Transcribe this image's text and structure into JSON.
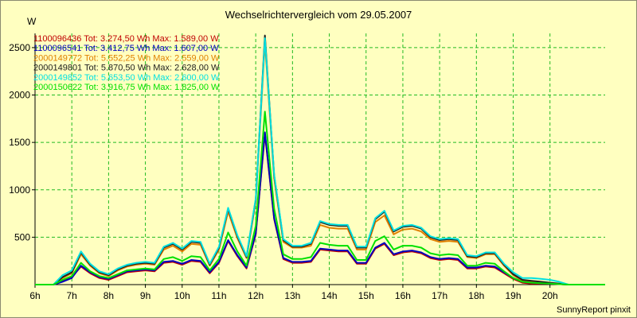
{
  "chart_data": {
    "type": "line",
    "title": "Wechselrichtervergleich vom 29.05.2007",
    "ylabel": "W",
    "xlabel": "",
    "credit": "SunnyReport pinxit",
    "grid": true,
    "legend_position": "top-left",
    "xlim": [
      6,
      21.5
    ],
    "ylim": [
      0,
      2650
    ],
    "x_ticks": [
      6,
      7,
      8,
      9,
      10,
      11,
      12,
      13,
      14,
      15,
      16,
      17,
      18,
      19,
      20
    ],
    "x_tick_labels": [
      "6h",
      "7h",
      "8h",
      "9h",
      "10h",
      "11h",
      "12h",
      "13h",
      "14h",
      "15h",
      "16h",
      "17h",
      "18h",
      "19h",
      "20h"
    ],
    "y_ticks": [
      500,
      1000,
      1500,
      2000,
      2500
    ],
    "y_tick_labels": [
      "500",
      "1000",
      "1500",
      "2000",
      "2500"
    ],
    "x": [
      6.5,
      6.75,
      7.0,
      7.25,
      7.5,
      7.75,
      8.0,
      8.25,
      8.5,
      8.75,
      9.0,
      9.25,
      9.5,
      9.75,
      10.0,
      10.25,
      10.5,
      10.75,
      11.0,
      11.25,
      11.5,
      11.75,
      12.0,
      12.25,
      12.5,
      12.75,
      13.0,
      13.25,
      13.5,
      13.75,
      14.0,
      14.25,
      14.5,
      14.75,
      15.0,
      15.25,
      15.5,
      15.75,
      16.0,
      16.25,
      16.5,
      16.75,
      17.0,
      17.25,
      17.5,
      17.75,
      18.0,
      18.25,
      18.5,
      18.75,
      19.0,
      19.25,
      19.5,
      19.75,
      20.0,
      20.25,
      20.5
    ],
    "series": [
      {
        "name": "1100096436 Tot: 3.274,50 Wh Max: 1.589,00 W",
        "color": "#c00000",
        "values": [
          0,
          40,
          80,
          190,
          120,
          70,
          50,
          90,
          130,
          140,
          150,
          140,
          230,
          240,
          210,
          250,
          240,
          120,
          230,
          460,
          300,
          170,
          530,
          1589,
          690,
          270,
          230,
          230,
          240,
          370,
          360,
          350,
          350,
          220,
          220,
          380,
          430,
          310,
          340,
          350,
          330,
          280,
          260,
          270,
          260,
          170,
          170,
          190,
          180,
          120,
          60,
          20,
          10,
          10,
          10,
          5,
          0
        ]
      },
      {
        "name": "1100096541 Tot: 3.412,75 Wh Max: 1.607,00 W",
        "color": "#0000c0",
        "values": [
          0,
          30,
          70,
          200,
          130,
          80,
          60,
          100,
          140,
          150,
          160,
          150,
          240,
          250,
          220,
          260,
          250,
          130,
          240,
          470,
          310,
          180,
          540,
          1607,
          700,
          280,
          240,
          240,
          250,
          380,
          370,
          360,
          360,
          230,
          230,
          390,
          440,
          320,
          350,
          360,
          340,
          290,
          270,
          280,
          270,
          180,
          180,
          200,
          190,
          130,
          70,
          30,
          20,
          15,
          10,
          5,
          0
        ]
      },
      {
        "name": "2000149772 Tot: 5.552,25 Wh Max: 2.559,00 W",
        "color": "#e08000",
        "values": [
          0,
          70,
          120,
          320,
          200,
          120,
          90,
          150,
          190,
          210,
          220,
          210,
          370,
          410,
          350,
          430,
          420,
          200,
          370,
          770,
          490,
          280,
          880,
          2559,
          1120,
          450,
          390,
          390,
          410,
          630,
          600,
          590,
          590,
          370,
          370,
          660,
          730,
          530,
          580,
          590,
          560,
          480,
          450,
          460,
          450,
          290,
          280,
          320,
          320,
          200,
          100,
          40,
          30,
          20,
          15,
          5,
          0
        ]
      },
      {
        "name": "2000149801 Tot: 5.870,50 Wh Max: 2.628,00 W",
        "color": "#202020",
        "values": [
          0,
          80,
          130,
          340,
          210,
          130,
          100,
          160,
          200,
          220,
          230,
          220,
          390,
          430,
          370,
          450,
          440,
          210,
          390,
          800,
          510,
          290,
          900,
          2628,
          1150,
          470,
          400,
          400,
          430,
          660,
          630,
          620,
          620,
          390,
          390,
          690,
          770,
          560,
          610,
          620,
          590,
          500,
          470,
          480,
          470,
          300,
          290,
          330,
          330,
          210,
          110,
          50,
          40,
          30,
          20,
          10,
          0
        ]
      },
      {
        "name": "2000149852 Tot: 5.653,50 Wh Max: 2.600,00 W",
        "color": "#00e0e0",
        "values": [
          0,
          100,
          150,
          350,
          220,
          140,
          110,
          170,
          210,
          230,
          240,
          230,
          400,
          440,
          380,
          460,
          450,
          220,
          400,
          810,
          520,
          300,
          910,
          2600,
          1160,
          480,
          410,
          410,
          440,
          670,
          640,
          630,
          630,
          400,
          400,
          700,
          780,
          570,
          620,
          630,
          600,
          510,
          480,
          490,
          480,
          310,
          300,
          340,
          340,
          220,
          130,
          70,
          70,
          60,
          50,
          30,
          0
        ]
      },
      {
        "name": "2000150622 Tot: 3.916,75 Wh Max: 1.825,00 W",
        "color": "#00e000",
        "values": [
          0,
          50,
          90,
          230,
          140,
          90,
          70,
          110,
          150,
          160,
          170,
          160,
          270,
          290,
          250,
          300,
          290,
          150,
          270,
          550,
          350,
          200,
          620,
          1825,
          800,
          320,
          270,
          270,
          290,
          440,
          420,
          410,
          410,
          260,
          260,
          460,
          510,
          370,
          410,
          410,
          390,
          330,
          310,
          320,
          310,
          200,
          200,
          230,
          220,
          140,
          70,
          30,
          20,
          15,
          10,
          5,
          0
        ]
      }
    ]
  }
}
